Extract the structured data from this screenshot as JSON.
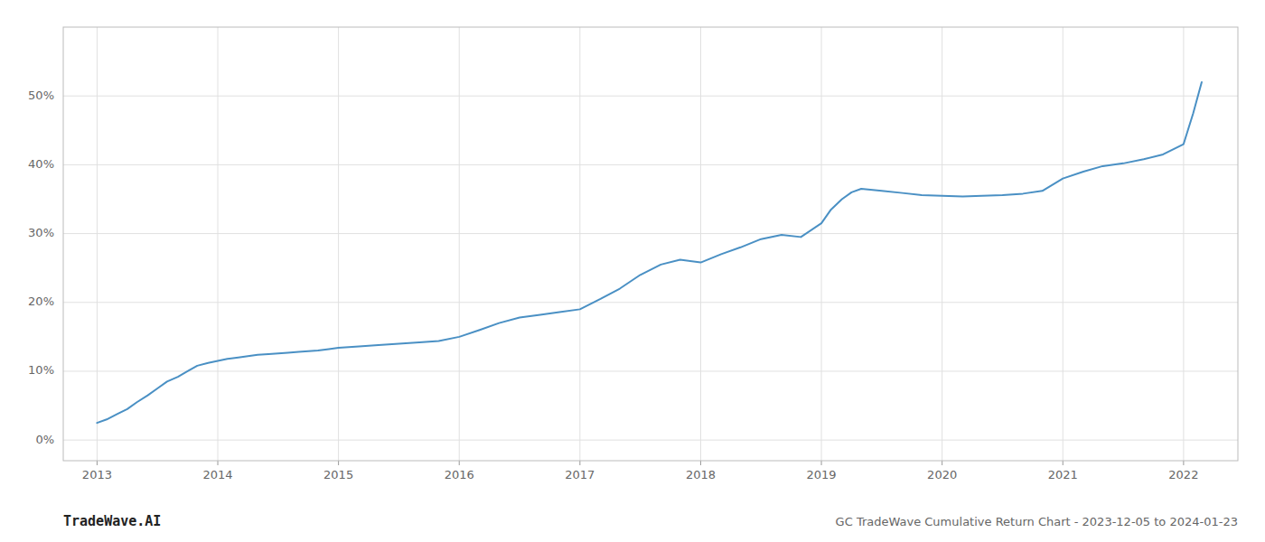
{
  "chart_data": {
    "type": "line",
    "title": "GC TradeWave Cumulative Return Chart - 2023-12-05 to 2024-01-23",
    "annotations": [
      "TradeWave.AI"
    ],
    "color": "#4a90c4",
    "x": [
      2013.0,
      2013.08,
      2013.17,
      2013.25,
      2013.33,
      2013.42,
      2013.5,
      2013.58,
      2013.67,
      2013.75,
      2013.83,
      2013.92,
      2014.0,
      2014.08,
      2014.17,
      2014.25,
      2014.33,
      2014.42,
      2014.5,
      2014.58,
      2014.67,
      2014.75,
      2014.83,
      2014.92,
      2015.0,
      2015.17,
      2015.33,
      2015.5,
      2015.67,
      2015.83,
      2016.0,
      2016.17,
      2016.33,
      2016.5,
      2016.67,
      2016.83,
      2017.0,
      2017.17,
      2017.33,
      2017.5,
      2017.67,
      2017.83,
      2018.0,
      2018.17,
      2018.33,
      2018.5,
      2018.67,
      2018.83,
      2019.0,
      2019.08,
      2019.17,
      2019.25,
      2019.33,
      2019.5,
      2019.67,
      2019.83,
      2020.0,
      2020.17,
      2020.33,
      2020.5,
      2020.67,
      2020.83,
      2021.0,
      2021.17,
      2021.33,
      2021.5,
      2021.67,
      2021.83,
      2022.0,
      2022.08,
      2022.15
    ],
    "values": [
      2.5,
      3.0,
      3.8,
      4.5,
      5.5,
      6.5,
      7.5,
      8.5,
      9.2,
      10.0,
      10.8,
      11.2,
      11.5,
      11.8,
      12.0,
      12.2,
      12.4,
      12.5,
      12.6,
      12.7,
      12.8,
      12.9,
      13.0,
      13.2,
      13.4,
      13.6,
      13.8,
      14.0,
      14.2,
      14.4,
      15.0,
      16.0,
      17.0,
      17.8,
      18.2,
      18.6,
      19.0,
      20.5,
      22.0,
      24.0,
      25.5,
      26.2,
      25.8,
      27.0,
      28.0,
      29.2,
      29.8,
      29.5,
      31.5,
      33.5,
      35.0,
      36.0,
      36.5,
      36.2,
      35.9,
      35.6,
      35.5,
      35.4,
      35.5,
      35.6,
      35.8,
      36.2,
      38.0,
      39.0,
      39.8,
      40.2,
      40.8,
      41.5,
      43.0,
      47.5,
      52.0
    ],
    "xlim": [
      2012.72,
      2022.45
    ],
    "ylim": [
      -3,
      60
    ],
    "xticks": [
      2013,
      2014,
      2015,
      2016,
      2017,
      2018,
      2019,
      2020,
      2021,
      2022
    ],
    "yticks": [
      {
        "value": 0,
        "label": "0%"
      },
      {
        "value": 10,
        "label": "10%"
      },
      {
        "value": 20,
        "label": "20%"
      },
      {
        "value": 30,
        "label": "30%"
      },
      {
        "value": 40,
        "label": "40%"
      },
      {
        "value": 50,
        "label": "50%"
      }
    ],
    "grid": true
  }
}
